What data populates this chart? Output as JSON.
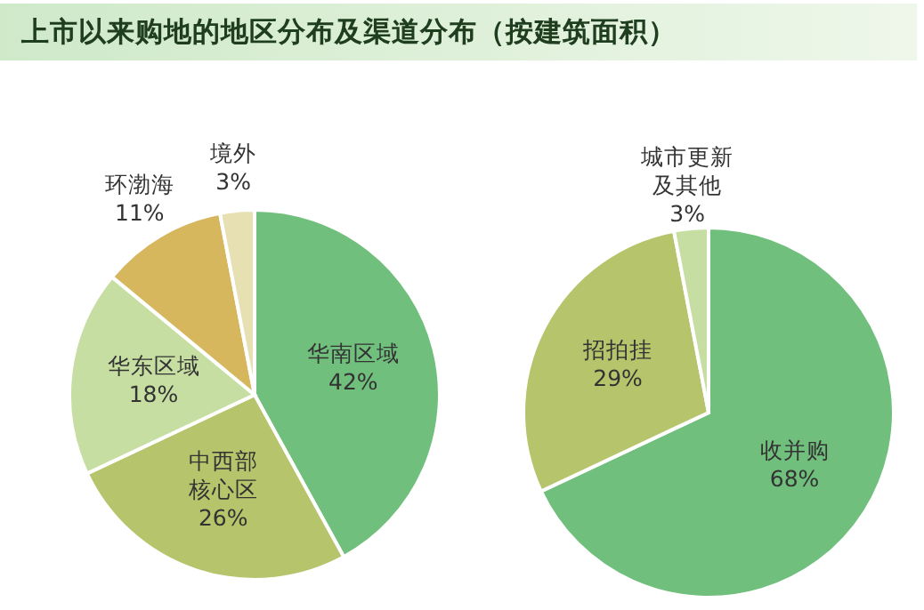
{
  "chart_data": [
    {
      "type": "pie",
      "title": "上市以来购地的地区分布及渠道分布（按建筑面积）",
      "categories": [
        "华南区域",
        "中西部核心区",
        "华东区域",
        "环渤海",
        "境外"
      ],
      "values": [
        42,
        26,
        18,
        11,
        3
      ],
      "colors": [
        "#70bf7c",
        "#b6c46c",
        "#c6dea2",
        "#d6b75e",
        "#e6e0b2"
      ],
      "value_labels": [
        "42%",
        "26%",
        "18%",
        "11%",
        "3%"
      ]
    },
    {
      "type": "pie",
      "categories": [
        "收并购",
        "招拍挂",
        "城市更新及其他"
      ],
      "values": [
        68,
        29,
        3
      ],
      "colors": [
        "#70bf7c",
        "#b6c46c",
        "#c6dea2"
      ],
      "value_labels": [
        "68%",
        "29%",
        "3%"
      ]
    }
  ]
}
